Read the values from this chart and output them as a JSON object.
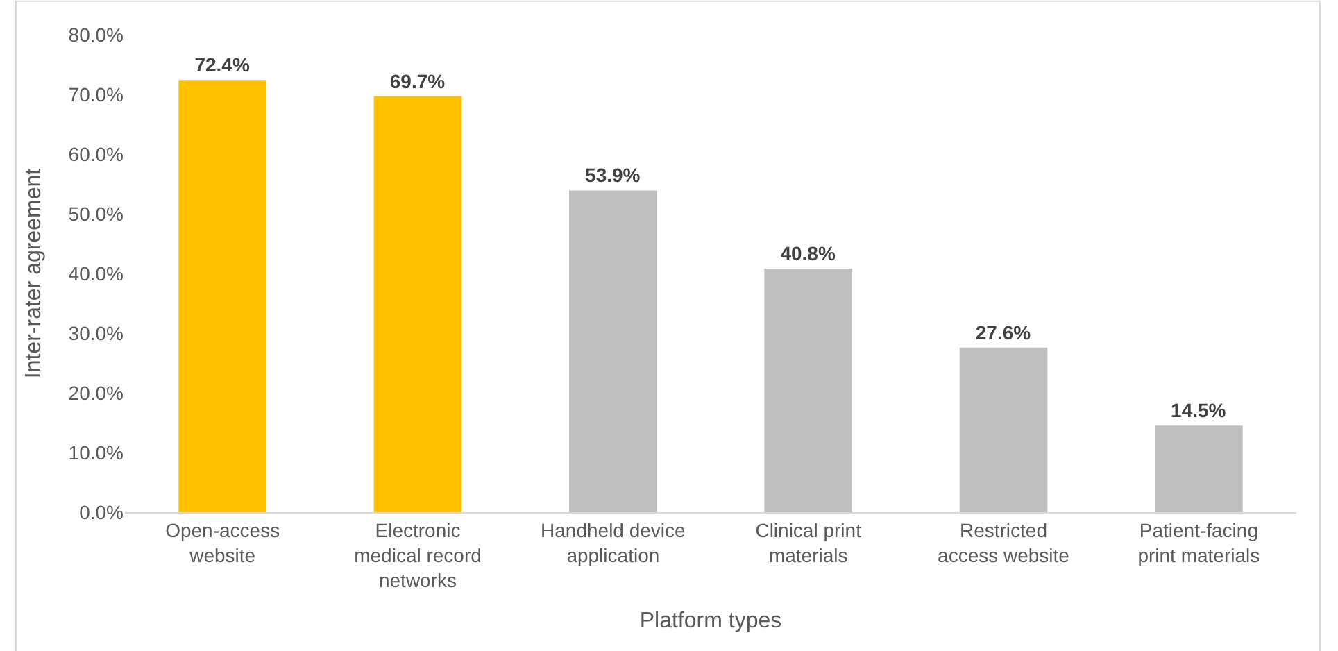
{
  "chart_data": {
    "type": "bar",
    "xlabel": "Platform types",
    "ylabel": "Inter-rater agreement",
    "categories": [
      "Open-access website",
      "Electronic medical record networks",
      "Handheld device application",
      "Clinical print materials",
      "Restricted access website",
      "Patient-facing print materials"
    ],
    "values": [
      72.4,
      69.7,
      53.9,
      40.8,
      27.6,
      14.5
    ],
    "colors": [
      "#ffc000",
      "#ffc000",
      "#bfbfbf",
      "#bfbfbf",
      "#bfbfbf",
      "#bfbfbf"
    ],
    "value_labels": [
      "72.4%",
      "69.7%",
      "53.9%",
      "40.8%",
      "27.6%",
      "14.5%"
    ],
    "ylim": [
      0,
      80
    ],
    "yticks": [
      {
        "value": 0,
        "label": "0.0%"
      },
      {
        "value": 10,
        "label": "10.0%"
      },
      {
        "value": 20,
        "label": "20.0%"
      },
      {
        "value": 30,
        "label": "30.0%"
      },
      {
        "value": 40,
        "label": "40.0%"
      },
      {
        "value": 50,
        "label": "50.0%"
      },
      {
        "value": 60,
        "label": "60.0%"
      },
      {
        "value": 70,
        "label": "70.0%"
      },
      {
        "value": 80,
        "label": "80.0%"
      }
    ],
    "grid": false
  }
}
